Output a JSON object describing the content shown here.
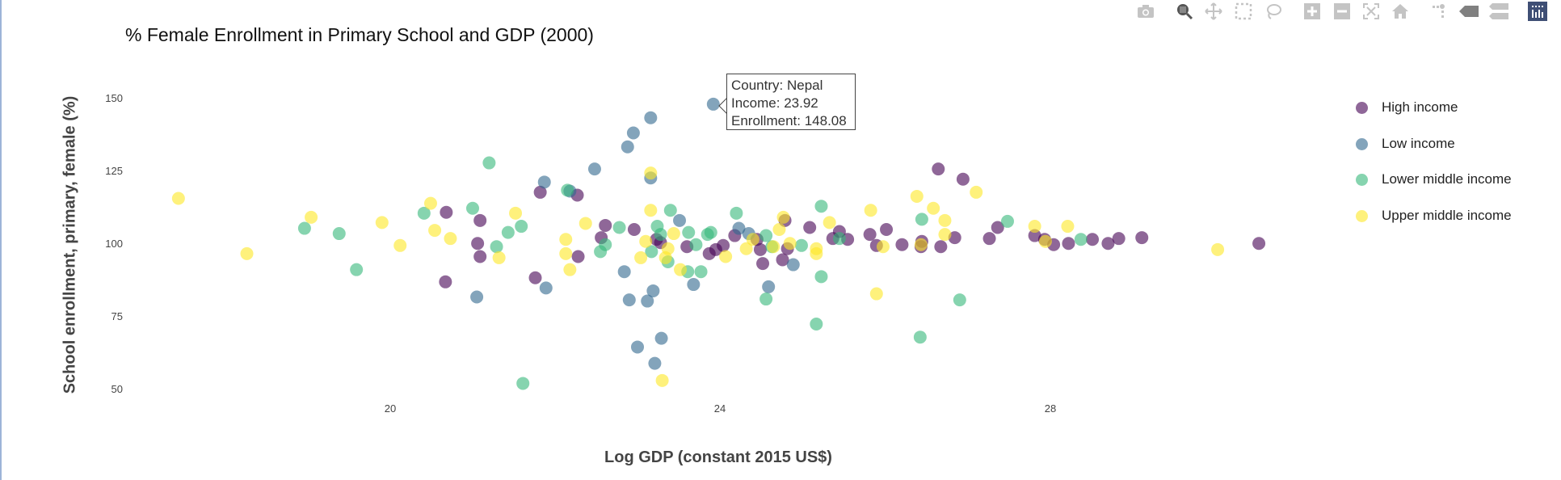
{
  "chart_data": {
    "type": "scatter",
    "title": "% Female Enrollment in Primary School and GDP (2000)",
    "xlabel": "Log GDP (constant 2015 US$)",
    "ylabel": "School enrollment, primary, female (%)",
    "xlim": [
      16.6,
      31.2
    ],
    "ylim": [
      46,
      156
    ],
    "xticks": [
      "20",
      "24",
      "28"
    ],
    "yticks": [
      "150",
      "125",
      "100",
      "75",
      "50"
    ],
    "grid": false,
    "legend_position": "right",
    "series": [
      {
        "name": "High income",
        "color": "#440154",
        "points": [
          [
            20.68,
            110.9
          ],
          [
            21.09,
            108.1
          ],
          [
            21.06,
            100.2
          ],
          [
            21.09,
            95.7
          ],
          [
            20.67,
            87.0
          ],
          [
            21.82,
            117.8
          ],
          [
            22.27,
            116.8
          ],
          [
            21.76,
            88.4
          ],
          [
            22.61,
            106.4
          ],
          [
            22.56,
            102.2
          ],
          [
            22.28,
            95.7
          ],
          [
            23.23,
            101.6
          ],
          [
            23.6,
            99.1
          ],
          [
            23.87,
            96.7
          ],
          [
            24.04,
            99.5
          ],
          [
            24.18,
            102.9
          ],
          [
            24.45,
            101.6
          ],
          [
            24.49,
            98.1
          ],
          [
            24.79,
            108.1
          ],
          [
            24.82,
            98.4
          ],
          [
            24.52,
            93.3
          ],
          [
            24.76,
            94.6
          ],
          [
            25.09,
            105.7
          ],
          [
            25.37,
            101.9
          ],
          [
            25.45,
            104.3
          ],
          [
            25.55,
            101.6
          ],
          [
            25.82,
            103.3
          ],
          [
            26.02,
            105.0
          ],
          [
            25.9,
            99.5
          ],
          [
            26.21,
            99.8
          ],
          [
            26.45,
            100.9
          ],
          [
            26.44,
            99.1
          ],
          [
            26.65,
            125.8
          ],
          [
            26.95,
            122.3
          ],
          [
            26.68,
            99.1
          ],
          [
            26.85,
            102.2
          ],
          [
            27.27,
            101.9
          ],
          [
            27.37,
            105.7
          ],
          [
            27.82,
            102.9
          ],
          [
            27.94,
            101.6
          ],
          [
            28.05,
            99.8
          ],
          [
            28.23,
            100.2
          ],
          [
            28.52,
            101.6
          ],
          [
            28.71,
            100.2
          ],
          [
            28.84,
            101.9
          ],
          [
            29.12,
            102.2
          ],
          [
            30.54,
            100.2
          ],
          [
            23.28,
            100.5
          ],
          [
            22.96,
            105.0
          ],
          [
            23.95,
            98.1
          ]
        ]
      },
      {
        "name": "Low income",
        "color": "#31688e",
        "points": [
          [
            23.92,
            148.08
          ],
          [
            23.16,
            143.4
          ],
          [
            22.95,
            138.2
          ],
          [
            22.88,
            133.4
          ],
          [
            22.48,
            125.8
          ],
          [
            23.16,
            122.7
          ],
          [
            21.87,
            121.3
          ],
          [
            21.05,
            81.8
          ],
          [
            21.89,
            84.9
          ],
          [
            22.84,
            90.5
          ],
          [
            22.9,
            80.8
          ],
          [
            23.12,
            80.4
          ],
          [
            23.19,
            83.9
          ],
          [
            23.29,
            67.6
          ],
          [
            23.0,
            64.6
          ],
          [
            23.21,
            59.0
          ],
          [
            23.51,
            108.1
          ],
          [
            23.68,
            86.1
          ],
          [
            24.35,
            103.6
          ],
          [
            24.59,
            85.3
          ],
          [
            24.89,
            92.9
          ],
          [
            24.23,
            105.4
          ],
          [
            22.18,
            118.2
          ]
        ]
      },
      {
        "name": "Lower middle income",
        "color": "#35b779",
        "points": [
          [
            21.2,
            127.9
          ],
          [
            18.96,
            105.4
          ],
          [
            19.38,
            103.6
          ],
          [
            19.59,
            91.2
          ],
          [
            20.41,
            110.6
          ],
          [
            21.0,
            112.3
          ],
          [
            21.29,
            99.1
          ],
          [
            21.43,
            104.0
          ],
          [
            21.59,
            106.1
          ],
          [
            21.61,
            52.1
          ],
          [
            22.15,
            118.5
          ],
          [
            22.78,
            105.7
          ],
          [
            22.61,
            99.8
          ],
          [
            22.55,
            97.4
          ],
          [
            23.24,
            106.1
          ],
          [
            23.4,
            111.6
          ],
          [
            23.28,
            103.3
          ],
          [
            23.17,
            97.4
          ],
          [
            23.37,
            93.9
          ],
          [
            23.62,
            104.0
          ],
          [
            23.71,
            99.8
          ],
          [
            23.85,
            103.3
          ],
          [
            23.89,
            104.0
          ],
          [
            23.61,
            90.5
          ],
          [
            23.77,
            90.5
          ],
          [
            24.2,
            110.6
          ],
          [
            24.56,
            102.9
          ],
          [
            24.63,
            99.1
          ],
          [
            24.99,
            99.5
          ],
          [
            25.23,
            113.0
          ],
          [
            25.23,
            88.8
          ],
          [
            25.17,
            72.5
          ],
          [
            24.56,
            81.1
          ],
          [
            25.45,
            101.9
          ],
          [
            26.45,
            108.5
          ],
          [
            26.91,
            80.8
          ],
          [
            26.43,
            68.0
          ],
          [
            27.49,
            107.8
          ],
          [
            28.38,
            101.6
          ]
        ]
      },
      {
        "name": "Upper middle income",
        "color": "#fde725",
        "points": [
          [
            17.43,
            115.7
          ],
          [
            18.26,
            96.7
          ],
          [
            19.04,
            109.2
          ],
          [
            19.9,
            107.4
          ],
          [
            20.12,
            99.5
          ],
          [
            20.49,
            114.0
          ],
          [
            20.54,
            104.7
          ],
          [
            20.73,
            101.9
          ],
          [
            21.32,
            95.3
          ],
          [
            21.52,
            110.6
          ],
          [
            22.13,
            101.6
          ],
          [
            22.13,
            96.7
          ],
          [
            22.18,
            91.2
          ],
          [
            22.37,
            107.1
          ],
          [
            23.04,
            95.3
          ],
          [
            23.16,
            124.4
          ],
          [
            23.16,
            111.6
          ],
          [
            23.1,
            100.9
          ],
          [
            23.37,
            98.4
          ],
          [
            23.34,
            95.3
          ],
          [
            23.44,
            103.6
          ],
          [
            23.52,
            91.2
          ],
          [
            23.3,
            53.1
          ],
          [
            24.32,
            98.4
          ],
          [
            24.4,
            101.6
          ],
          [
            24.65,
            99.1
          ],
          [
            24.72,
            105.0
          ],
          [
            24.77,
            109.2
          ],
          [
            24.85,
            100.2
          ],
          [
            25.17,
            98.4
          ],
          [
            25.33,
            107.4
          ],
          [
            25.83,
            111.6
          ],
          [
            25.9,
            82.9
          ],
          [
            25.98,
            99.1
          ],
          [
            26.39,
            116.4
          ],
          [
            26.44,
            99.8
          ],
          [
            26.59,
            112.3
          ],
          [
            26.73,
            108.1
          ],
          [
            26.73,
            103.3
          ],
          [
            27.11,
            117.8
          ],
          [
            27.82,
            106.1
          ],
          [
            27.95,
            100.9
          ],
          [
            28.22,
            106.1
          ],
          [
            30.04,
            98.1
          ],
          [
            25.17,
            96.7
          ],
          [
            24.07,
            95.7
          ]
        ]
      }
    ]
  },
  "tooltip": {
    "country": "Country: Nepal",
    "income": "Income: 23.92",
    "enrollment": "Enrollment: 148.08"
  },
  "modebar": [
    "camera-icon",
    "zoom-icon",
    "pan-icon",
    "box-select-icon",
    "lasso-select-icon",
    "zoom-in-icon",
    "zoom-out-icon",
    "autoscale-icon",
    "reset-axes-icon",
    "spike-lines-icon",
    "hover-closest-icon",
    "hover-compare-icon",
    "plotly-logo-icon"
  ]
}
